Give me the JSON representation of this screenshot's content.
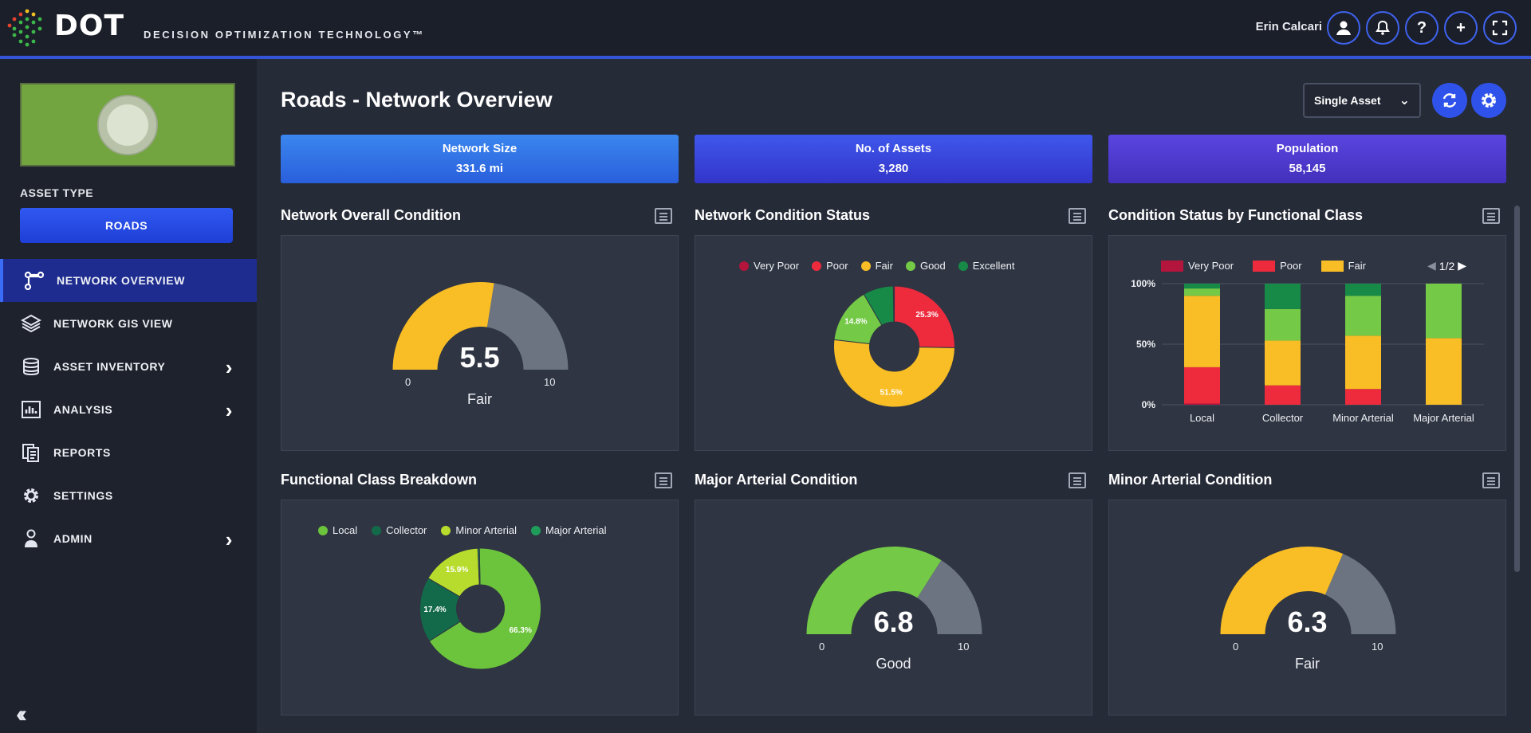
{
  "app": {
    "brand": "DOT",
    "tagline": "DECISION OPTIMIZATION TECHNOLOGY™",
    "user": "Erin Calcari",
    "header_icons": [
      "user-icon",
      "bell-icon",
      "help-icon",
      "plus-icon",
      "fullscreen-icon"
    ]
  },
  "sidebar": {
    "asset_type_label": "ASSET TYPE",
    "asset_type_value": "ROADS",
    "items": [
      {
        "label": "NETWORK OVERVIEW",
        "icon": "route-icon",
        "active": true
      },
      {
        "label": "NETWORK GIS VIEW",
        "icon": "layers-icon"
      },
      {
        "label": "ASSET INVENTORY",
        "icon": "database-icon",
        "expandable": true
      },
      {
        "label": "ANALYSIS",
        "icon": "chart-icon",
        "expandable": true
      },
      {
        "label": "REPORTS",
        "icon": "reports-icon"
      },
      {
        "label": "SETTINGS",
        "icon": "gear-icon"
      },
      {
        "label": "ADMIN",
        "icon": "person-icon",
        "expandable": true
      }
    ],
    "collapse_icon": "collapse-left-icon"
  },
  "main": {
    "title": "Roads - Network Overview",
    "view_select": "Single Asset",
    "stats": [
      {
        "label": "Network Size",
        "value": "331.6 mi"
      },
      {
        "label": "No. of Assets",
        "value": "3,280"
      },
      {
        "label": "Population",
        "value": "58,145"
      }
    ],
    "cards": {
      "overall": {
        "title": "Network Overall Condition",
        "value": "5.5",
        "min": "0",
        "max": "10",
        "category": "Fair"
      },
      "status": {
        "title": "Network Condition Status"
      },
      "functional": {
        "title": "Condition Status by Functional Class",
        "pager": "1/2"
      },
      "breakdown": {
        "title": "Functional Class Breakdown"
      },
      "major": {
        "title": "Major Arterial Condition",
        "value": "6.8",
        "min": "0",
        "max": "10",
        "category": "Good"
      },
      "minor": {
        "title": "Minor Arterial Condition",
        "value": "6.3",
        "min": "0",
        "max": "10",
        "category": "Fair"
      }
    }
  },
  "colors": {
    "very_poor": "#b3153d",
    "poor": "#ee2b3d",
    "fair": "#f9be26",
    "good": "#74c947",
    "excellent": "#178a48",
    "gauge_rest": "#6b7480"
  },
  "chart_data": [
    {
      "type": "pie",
      "title": "Network Condition Status",
      "labels": [
        "Very Poor",
        "Poor",
        "Fair",
        "Good",
        "Excellent"
      ],
      "values": [
        0.3,
        25.3,
        51.5,
        14.8,
        8.1
      ],
      "data_labels": [
        "",
        "25.3%",
        "51.5%",
        "14.8%",
        ""
      ],
      "colors": [
        "#b3153d",
        "#ee2b3d",
        "#f9be26",
        "#74c947",
        "#178a48"
      ]
    },
    {
      "type": "bar",
      "stacked": true,
      "title": "Condition Status by Functional Class",
      "categories": [
        "Local",
        "Collector",
        "Minor Arterial",
        "Major Arterial"
      ],
      "ytick_labels": [
        "0%",
        "50%",
        "100%"
      ],
      "ylim": [
        0,
        100
      ],
      "legend": [
        "Very Poor",
        "Poor",
        "Fair"
      ],
      "series": [
        {
          "name": "Very Poor",
          "values": [
            1,
            0,
            0,
            0
          ],
          "color": "#b3153d"
        },
        {
          "name": "Poor",
          "values": [
            30,
            16,
            13,
            0
          ],
          "color": "#ee2b3d"
        },
        {
          "name": "Fair",
          "values": [
            59,
            37,
            44,
            55
          ],
          "color": "#f9be26"
        },
        {
          "name": "Good",
          "values": [
            6,
            26,
            33,
            45
          ],
          "color": "#74c947"
        },
        {
          "name": "Excellent",
          "values": [
            4,
            21,
            10,
            0
          ],
          "color": "#178a48"
        }
      ]
    },
    {
      "type": "pie",
      "title": "Functional Class Breakdown",
      "labels": [
        "Local",
        "Collector",
        "Minor Arterial",
        "Major Arterial"
      ],
      "values": [
        66.3,
        17.4,
        15.9,
        0.4
      ],
      "data_labels": [
        "66.3%",
        "17.4%",
        "15.9%",
        ""
      ],
      "colors": [
        "#6cc43c",
        "#136a4a",
        "#b8dc2d",
        "#1f9c5a"
      ]
    }
  ]
}
